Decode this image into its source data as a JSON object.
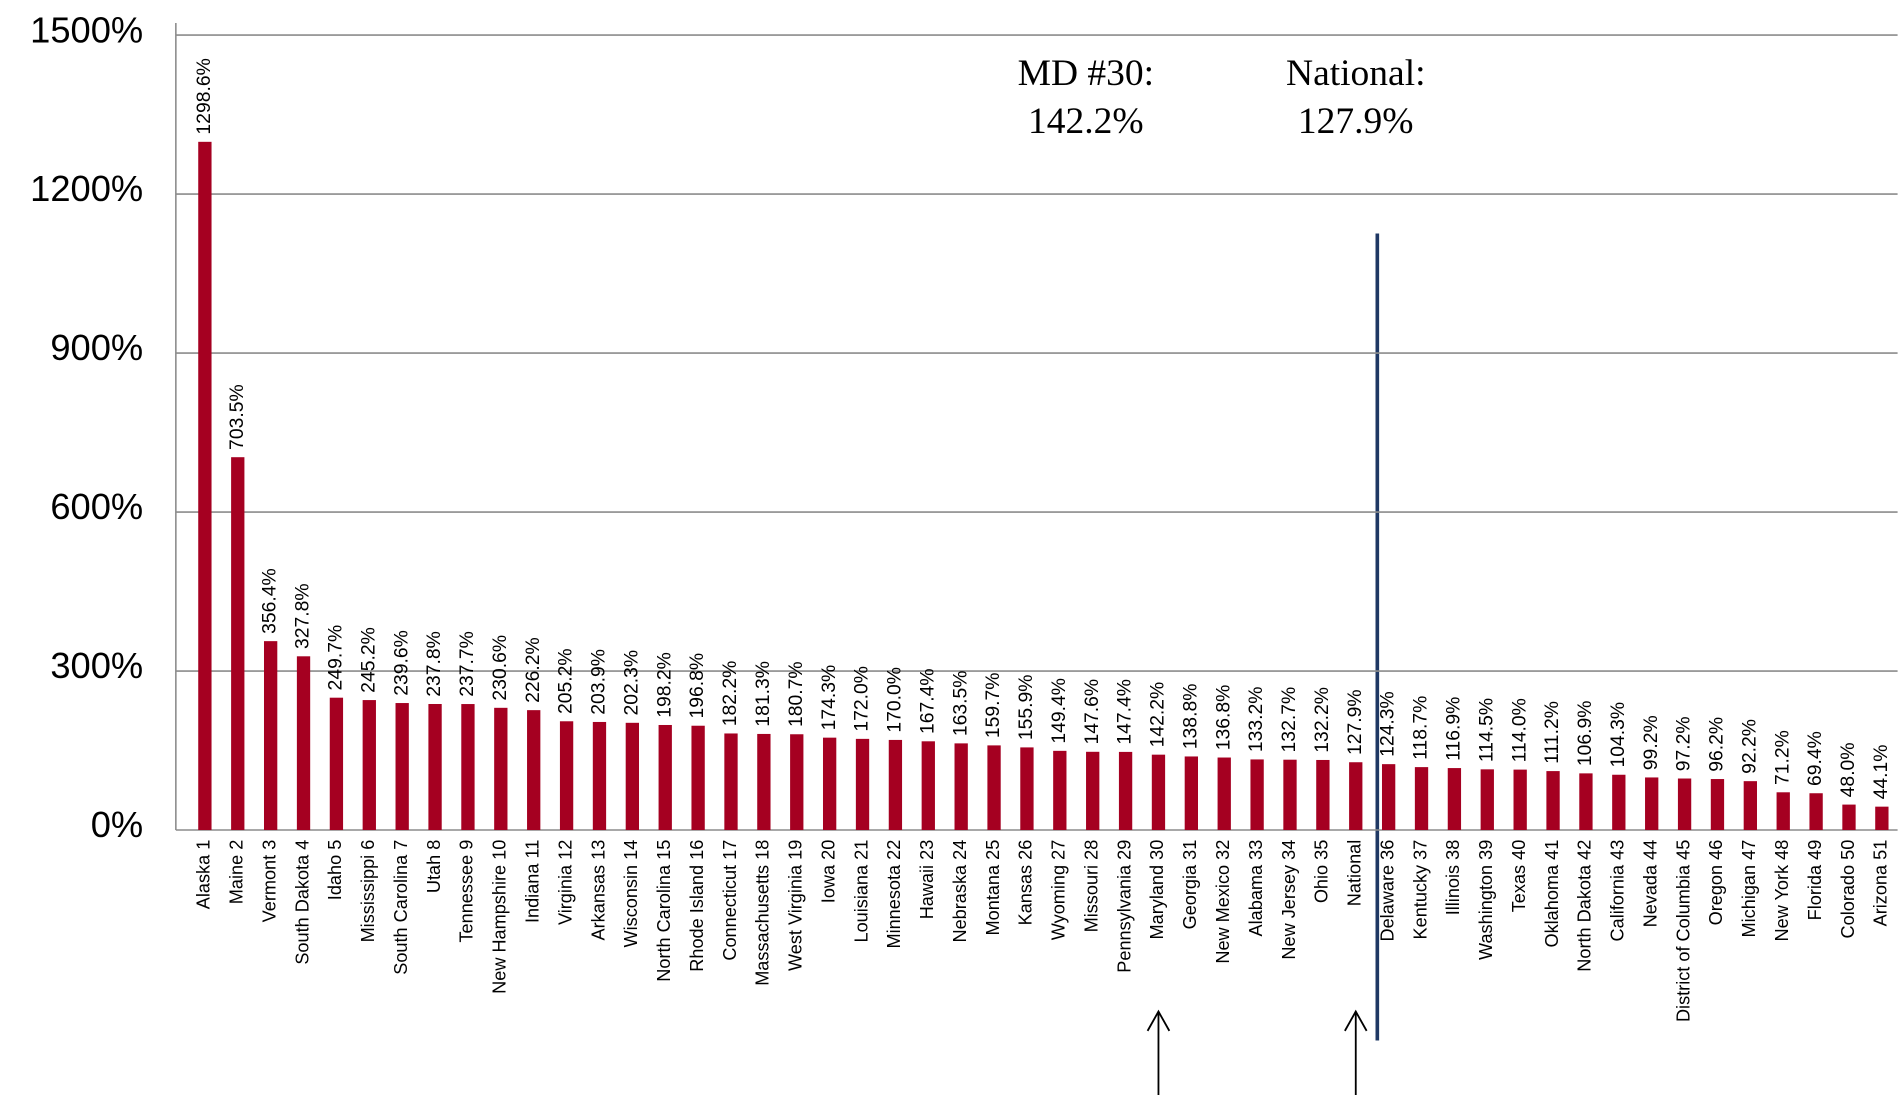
{
  "chart_data": {
    "type": "bar",
    "categories": [
      "Alaska 1",
      "Maine 2",
      "Vermont 3",
      "South Dakota 4",
      "Idaho 5",
      "Mississippi 6",
      "South Carolina 7",
      "Utah 8",
      "Tennessee 9",
      "New Hampshire 10",
      "Indiana 11",
      "Virginia 12",
      "Arkansas 13",
      "Wisconsin 14",
      "North Carolina 15",
      "Rhode Island 16",
      "Connecticut 17",
      "Massachusetts 18",
      "West Virginia 19",
      "Iowa 20",
      "Louisiana 21",
      "Minnesota 22",
      "Hawaii 23",
      "Nebraska 24",
      "Montana 25",
      "Kansas 26",
      "Wyoming 27",
      "Missouri 28",
      "Pennsylvania 29",
      "Maryland 30",
      "Georgia 31",
      "New Mexico 32",
      "Alabama 33",
      "New Jersey 34",
      "Ohio 35",
      "National",
      "Delaware 36",
      "Kentucky 37",
      "Illinois 38",
      "Washington 39",
      "Texas 40",
      "Oklahoma 41",
      "North Dakota 42",
      "California 43",
      "Nevada 44",
      "District of Columbia 45",
      "Oregon 46",
      "Michigan 47",
      "New York 48",
      "Florida 49",
      "Colorado 50",
      "Arizona 51"
    ],
    "values": [
      1298.6,
      703.5,
      356.4,
      327.8,
      249.7,
      245.2,
      239.6,
      237.8,
      237.7,
      230.6,
      226.2,
      205.2,
      203.9,
      202.3,
      198.2,
      196.8,
      182.2,
      181.3,
      180.7,
      174.3,
      172.0,
      170.0,
      167.4,
      163.5,
      159.7,
      155.9,
      149.4,
      147.6,
      147.4,
      142.2,
      138.8,
      136.8,
      133.2,
      132.7,
      132.2,
      127.9,
      124.3,
      118.7,
      116.9,
      114.5,
      114.0,
      111.2,
      106.9,
      104.3,
      99.2,
      97.2,
      96.2,
      92.2,
      71.2,
      69.4,
      48.0,
      44.1
    ],
    "value_labels": [
      "1298.6%",
      "703.5%",
      "356.4%",
      "327.8%",
      "249.7%",
      "245.2%",
      "239.6%",
      "237.8%",
      "237.7%",
      "230.6%",
      "226.2%",
      "205.2%",
      "203.9%",
      "202.3%",
      "198.2%",
      "196.8%",
      "182.2%",
      "181.3%",
      "180.7%",
      "174.3%",
      "172.0%",
      "170.0%",
      "167.4%",
      "163.5%",
      "159.7%",
      "155.9%",
      "149.4%",
      "147.6%",
      "147.4%",
      "142.2%",
      "138.8%",
      "136.8%",
      "133.2%",
      "132.7%",
      "132.2%",
      "127.9%",
      "124.3%",
      "118.7%",
      "116.9%",
      "114.5%",
      "114.0%",
      "111.2%",
      "106.9%",
      "104.3%",
      "99.2%",
      "97.2%",
      "96.2%",
      "92.2%",
      "71.2%",
      "69.4%",
      "48.0%",
      "44.1%"
    ],
    "color": "#a50021",
    "ylim": [
      0,
      1500
    ],
    "yticks": [
      {
        "value": 0,
        "label": "0%"
      },
      {
        "value": 300,
        "label": "300%"
      },
      {
        "value": 600,
        "label": "600%"
      },
      {
        "value": 900,
        "label": "900%"
      },
      {
        "value": 1200,
        "label": "1200%"
      },
      {
        "value": 1500,
        "label": "1500%"
      }
    ],
    "grid": true,
    "annotations": [
      {
        "lines": [
          "MD #30:",
          "142.2%"
        ],
        "category": "Maryland 30"
      },
      {
        "lines": [
          "National:",
          "127.9%"
        ],
        "category": "National"
      }
    ]
  }
}
